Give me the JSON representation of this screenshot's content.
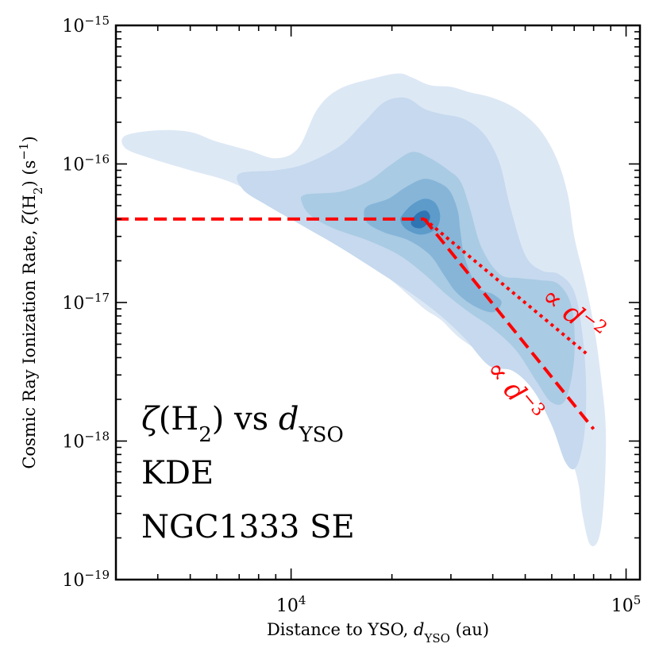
{
  "chart_data": {
    "type": "kde-contour",
    "xlabel": "Distance to YSO, d_YSO (au)",
    "ylabel": "Cosmic Ray Ionization Rate, ζ(H₂) (s⁻¹)",
    "xscale": "log",
    "yscale": "log",
    "xlim": [
      3000,
      110000
    ],
    "ylim": [
      1e-19,
      1e-15
    ],
    "x_ticks": [
      {
        "value": 10000,
        "base": "10",
        "exp": "4"
      },
      {
        "value": 100000,
        "base": "10",
        "exp": "5"
      }
    ],
    "y_ticks": [
      {
        "value": 1e-15,
        "base": "10",
        "exp": "−15"
      },
      {
        "value": 1e-16,
        "base": "10",
        "exp": "−16"
      },
      {
        "value": 1e-17,
        "base": "10",
        "exp": "−17"
      },
      {
        "value": 1e-18,
        "base": "10",
        "exp": "−18"
      },
      {
        "value": 1e-19,
        "base": "10",
        "exp": "−19"
      }
    ],
    "annotations": [
      {
        "text": "ζ(H₂) vs d_YSO"
      },
      {
        "text": "KDE"
      },
      {
        "text": "NGC1333 SE"
      }
    ],
    "model_lines": [
      {
        "name": "flat",
        "style": "dashed",
        "color": "#ff0000",
        "points": [
          [
            3000,
            4e-17
          ],
          [
            25000,
            4e-17
          ]
        ]
      },
      {
        "name": "∝ d⁻²",
        "style": "dotted",
        "color": "#ff0000",
        "points": [
          [
            25000,
            4e-17
          ],
          [
            76000,
            4.3e-18
          ]
        ]
      },
      {
        "name": "∝ d⁻³",
        "style": "dashed",
        "color": "#ff0000",
        "points": [
          [
            25000,
            4e-17
          ],
          [
            80000,
            1.22e-18
          ]
        ]
      }
    ],
    "contour_levels": [
      {
        "level": 1,
        "color": "#dde8f5",
        "points": [
          [
            3200,
            1.6e-16
          ],
          [
            4000,
            1.75e-16
          ],
          [
            5000,
            1.7e-16
          ],
          [
            6000,
            1.45e-16
          ],
          [
            7500,
            1.25e-16
          ],
          [
            9000,
            1.1e-16
          ],
          [
            10500,
            1.3e-16
          ],
          [
            12000,
            2.5e-16
          ],
          [
            14000,
            3.5e-16
          ],
          [
            18000,
            4.2e-16
          ],
          [
            21000,
            4.5e-16
          ],
          [
            23000,
            4.2e-16
          ],
          [
            26000,
            3.7e-16
          ],
          [
            30000,
            3.6e-16
          ],
          [
            34000,
            3.3e-16
          ],
          [
            40000,
            3e-16
          ],
          [
            47000,
            2.5e-16
          ],
          [
            55000,
            1.8e-16
          ],
          [
            62000,
            1.1e-16
          ],
          [
            67000,
            6e-17
          ],
          [
            70000,
            3e-17
          ],
          [
            75000,
            1.5e-17
          ],
          [
            80000,
            7e-18
          ],
          [
            84000,
            3e-18
          ],
          [
            87000,
            1.2e-18
          ],
          [
            86000,
            4e-19
          ],
          [
            83000,
            2e-19
          ],
          [
            78000,
            1.8e-19
          ],
          [
            74000,
            3e-19
          ],
          [
            72000,
            5e-19
          ],
          [
            68000,
            8e-19
          ],
          [
            62000,
            1.5e-18
          ],
          [
            56000,
            2.6e-18
          ],
          [
            50000,
            3.8e-18
          ],
          [
            44000,
            4.5e-18
          ],
          [
            38000,
            4.3e-18
          ],
          [
            32000,
            5.5e-18
          ],
          [
            28000,
            7.5e-18
          ],
          [
            25000,
            9e-18
          ],
          [
            21000,
            1.3e-17
          ],
          [
            17000,
            2e-17
          ],
          [
            14000,
            3e-17
          ],
          [
            11000,
            4e-17
          ],
          [
            8500,
            5.5e-17
          ],
          [
            6500,
            7.5e-17
          ],
          [
            5000,
            9e-17
          ],
          [
            3800,
            1.1e-16
          ],
          [
            3200,
            1.3e-16
          ]
        ]
      },
      {
        "level": 2,
        "color": "#c6d9ee",
        "points": [
          [
            7000,
            8.5e-17
          ],
          [
            9000,
            9e-17
          ],
          [
            11000,
            1e-16
          ],
          [
            14000,
            1.35e-16
          ],
          [
            16500,
            2e-16
          ],
          [
            19000,
            2.8e-16
          ],
          [
            22000,
            3e-16
          ],
          [
            25000,
            2.5e-16
          ],
          [
            28000,
            2.3e-16
          ],
          [
            33000,
            2.1e-16
          ],
          [
            38000,
            1.6e-16
          ],
          [
            42000,
            1e-16
          ],
          [
            45000,
            5e-17
          ],
          [
            50000,
            2.2e-17
          ],
          [
            56000,
            1.7e-17
          ],
          [
            63000,
            1.6e-17
          ],
          [
            70000,
            1.2e-17
          ],
          [
            74000,
            6e-18
          ],
          [
            76000,
            2.5e-18
          ],
          [
            75000,
            1.1e-18
          ],
          [
            71000,
            6.5e-19
          ],
          [
            66000,
            7e-19
          ],
          [
            60000,
            1.3e-18
          ],
          [
            53000,
            2.3e-18
          ],
          [
            46000,
            3.2e-18
          ],
          [
            39000,
            3.5e-18
          ],
          [
            33000,
            5.5e-18
          ],
          [
            28000,
            8e-18
          ],
          [
            23000,
            1.15e-17
          ],
          [
            18000,
            1.7e-17
          ],
          [
            14000,
            2.5e-17
          ],
          [
            11000,
            3.5e-17
          ],
          [
            8500,
            5e-17
          ],
          [
            7200,
            6.5e-17
          ]
        ]
      },
      {
        "level": 3,
        "color": "#a9cbe3",
        "points": [
          [
            11000,
            6e-17
          ],
          [
            14000,
            6.3e-17
          ],
          [
            17000,
            7.5e-17
          ],
          [
            20000,
            1e-16
          ],
          [
            23000,
            1.22e-16
          ],
          [
            26000,
            1.1e-16
          ],
          [
            29500,
            9e-17
          ],
          [
            32000,
            7.5e-17
          ],
          [
            34000,
            5e-17
          ],
          [
            37000,
            2.5e-17
          ],
          [
            42000,
            1.6e-17
          ],
          [
            48000,
            1.5e-17
          ],
          [
            55000,
            1.45e-17
          ],
          [
            63000,
            1.35e-17
          ],
          [
            69000,
            9e-18
          ],
          [
            70000,
            4e-18
          ],
          [
            66000,
            2e-18
          ],
          [
            60000,
            1.9e-18
          ],
          [
            54000,
            2.7e-18
          ],
          [
            47000,
            4.5e-18
          ],
          [
            40000,
            6.5e-18
          ],
          [
            34000,
            8.5e-18
          ],
          [
            29000,
            1.15e-17
          ],
          [
            25000,
            1.6e-17
          ],
          [
            21000,
            2.2e-17
          ],
          [
            17000,
            2.8e-17
          ],
          [
            13500,
            3.4e-17
          ],
          [
            11500,
            4.2e-17
          ],
          [
            10800,
            5.2e-17
          ]
        ]
      },
      {
        "level": 4,
        "color": "#86b5d8",
        "points": [
          [
            17000,
            5e-17
          ],
          [
            19500,
            5.6e-17
          ],
          [
            22000,
            6.8e-17
          ],
          [
            25000,
            7.8e-17
          ],
          [
            28000,
            7.2e-17
          ],
          [
            30000,
            6.2e-17
          ],
          [
            31500,
            4.5e-17
          ],
          [
            32000,
            3.3e-17
          ],
          [
            33000,
            2.1e-17
          ],
          [
            36000,
            1.3e-17
          ],
          [
            40000,
            1.15e-17
          ],
          [
            42500,
            1e-17
          ],
          [
            40000,
            8.5e-18
          ],
          [
            35000,
            9.5e-18
          ],
          [
            31000,
            1.2e-17
          ],
          [
            28500,
            1.6e-17
          ],
          [
            26000,
            2.2e-17
          ],
          [
            22500,
            2.8e-17
          ],
          [
            19000,
            3.2e-17
          ],
          [
            17000,
            3.7e-17
          ],
          [
            16500,
            4.4e-17
          ]
        ]
      },
      {
        "level": 5,
        "color": "#5c9bca",
        "points": [
          [
            21500,
            4.3e-17
          ],
          [
            23000,
            5.1e-17
          ],
          [
            25000,
            5.6e-17
          ],
          [
            26800,
            5.3e-17
          ],
          [
            27800,
            4.4e-17
          ],
          [
            27500,
            3.6e-17
          ],
          [
            26000,
            3.2e-17
          ],
          [
            24000,
            3.1e-17
          ],
          [
            22000,
            3.4e-17
          ],
          [
            21200,
            3.9e-17
          ]
        ]
      },
      {
        "level": 6,
        "color": "#2f74b3",
        "points": [
          [
            22800,
            3.8e-17
          ],
          [
            23800,
            4.4e-17
          ],
          [
            25200,
            4.6e-17
          ],
          [
            26000,
            4.2e-17
          ],
          [
            25500,
            3.7e-17
          ],
          [
            24500,
            3.45e-17
          ],
          [
            23300,
            3.5e-17
          ]
        ]
      }
    ]
  }
}
